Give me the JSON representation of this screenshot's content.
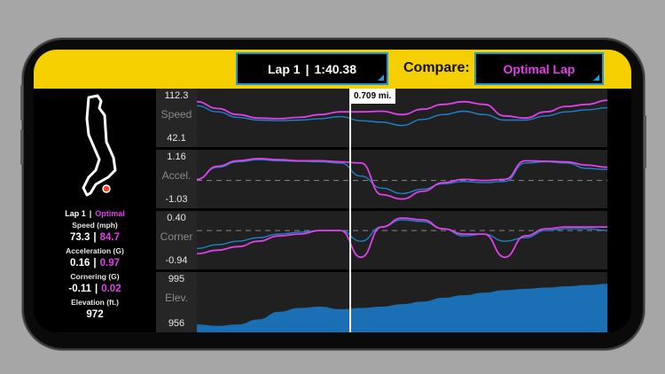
{
  "header": {
    "lap_label": "Lap 1",
    "lap_time": "1:40.38",
    "compare_label": "Compare:",
    "compare_value": "Optimal Lap"
  },
  "cursor": {
    "distance": "0.709 mi."
  },
  "legend": {
    "lap": "Lap 1",
    "optimal": "Optimal"
  },
  "stats": {
    "speed": {
      "caption": "Speed (mph)",
      "lap": "73.3",
      "optimal": "84.7"
    },
    "acceleration": {
      "caption": "Acceleration (G)",
      "lap": "0.16",
      "optimal": "0.97"
    },
    "cornering": {
      "caption": "Cornering (G)",
      "lap": "-0.11",
      "optimal": "0.02"
    },
    "elevation": {
      "caption": "Elevation (ft.)",
      "value": "972"
    }
  },
  "charts": {
    "speed": {
      "name": "Speed",
      "max": "112.3",
      "min": "42.1"
    },
    "accel": {
      "name": "Accel.",
      "max": "1.16",
      "min": "-1.03"
    },
    "corner": {
      "name": "Corner",
      "max": "0.40",
      "min": "-0.94"
    },
    "elev": {
      "name": "Elev.",
      "max": "995",
      "min": "956"
    }
  },
  "colors": {
    "lap": "#1b82c8",
    "optimal": "#e040e8",
    "accent": "#f5cf00",
    "elevation_fill": "#1a6fb5"
  },
  "chart_data": [
    {
      "type": "line",
      "title": "Speed",
      "ylim": [
        42.1,
        112.3
      ],
      "x": [
        0,
        0.05,
        0.1,
        0.15,
        0.2,
        0.25,
        0.3,
        0.35,
        0.4,
        0.45,
        0.5,
        0.55,
        0.6,
        0.65,
        0.7,
        0.75,
        0.8,
        0.85,
        0.9,
        0.95,
        1.0
      ],
      "series": [
        {
          "name": "Lap 1",
          "values": [
            95,
            86,
            78,
            74,
            73,
            74,
            76,
            79,
            73,
            71,
            66,
            75,
            82,
            87,
            82,
            74,
            74,
            80,
            86,
            89,
            92
          ]
        },
        {
          "name": "Optimal",
          "values": [
            101,
            91,
            82,
            77,
            76,
            78,
            82,
            86,
            86,
            87,
            82,
            90,
            97,
            101,
            97,
            80,
            77,
            86,
            94,
            97,
            103
          ]
        }
      ]
    },
    {
      "type": "line",
      "title": "Accel.",
      "ylim": [
        -1.03,
        1.16
      ],
      "x": [
        0,
        0.05,
        0.1,
        0.15,
        0.2,
        0.25,
        0.3,
        0.35,
        0.4,
        0.45,
        0.5,
        0.55,
        0.6,
        0.65,
        0.7,
        0.75,
        0.8,
        0.85,
        0.9,
        0.95,
        1.0
      ],
      "series": [
        {
          "name": "Lap 1",
          "values": [
            0.05,
            0.6,
            0.85,
            0.95,
            0.9,
            0.88,
            0.85,
            0.8,
            0.2,
            -0.35,
            -0.6,
            -0.4,
            -0.15,
            -0.05,
            -0.1,
            -0.05,
            0.8,
            0.85,
            0.8,
            0.55,
            0.5
          ]
        },
        {
          "name": "Optimal",
          "values": [
            0.05,
            0.65,
            0.9,
            1.0,
            0.95,
            0.9,
            0.9,
            0.85,
            0.8,
            -0.65,
            -0.85,
            -0.5,
            -0.1,
            0.05,
            0.0,
            0.05,
            0.9,
            0.88,
            0.85,
            0.7,
            0.6
          ]
        }
      ]
    },
    {
      "type": "line",
      "title": "Corner",
      "ylim": [
        -0.94,
        0.4
      ],
      "x": [
        0,
        0.05,
        0.1,
        0.15,
        0.2,
        0.25,
        0.3,
        0.35,
        0.4,
        0.45,
        0.5,
        0.55,
        0.6,
        0.65,
        0.7,
        0.75,
        0.8,
        0.85,
        0.9,
        0.95,
        1.0
      ],
      "series": [
        {
          "name": "Lap 1",
          "values": [
            -0.5,
            -0.4,
            -0.3,
            -0.2,
            -0.1,
            -0.05,
            0.0,
            0.0,
            -0.3,
            0.1,
            0.3,
            0.25,
            0.05,
            -0.15,
            -0.1,
            -0.3,
            -0.2,
            0.0,
            0.05,
            0.05,
            0.0
          ]
        },
        {
          "name": "Optimal",
          "values": [
            -0.65,
            -0.55,
            -0.45,
            -0.3,
            -0.15,
            -0.1,
            0.0,
            0.0,
            -0.75,
            0.1,
            0.35,
            0.3,
            0.05,
            -0.1,
            -0.1,
            -0.75,
            -0.15,
            0.05,
            0.1,
            0.1,
            0.1
          ]
        }
      ]
    },
    {
      "type": "area",
      "title": "Elev.",
      "ylim": [
        956,
        995
      ],
      "x": [
        0,
        0.05,
        0.1,
        0.15,
        0.2,
        0.25,
        0.3,
        0.35,
        0.4,
        0.45,
        0.5,
        0.55,
        0.6,
        0.65,
        0.7,
        0.75,
        0.8,
        0.85,
        0.9,
        0.95,
        1.0
      ],
      "series": [
        {
          "name": "Elev.",
          "values": [
            958,
            957,
            958,
            962,
            968,
            971,
            972,
            970,
            971,
            972,
            974,
            976,
            979,
            981,
            983,
            985,
            986,
            987,
            988,
            989,
            990
          ]
        }
      ]
    }
  ]
}
